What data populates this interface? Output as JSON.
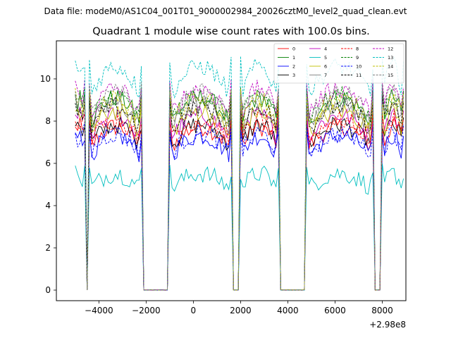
{
  "figure": {
    "suptitle": "Data file: modeM0/AS1C04_001T01_9000002984_20026cztM0_level2_quad_clean.evt",
    "offset_text": "+2.98e8"
  },
  "chart_data": {
    "type": "line",
    "title": "Quadrant 1 module wise count rates with 100.0s bins.",
    "xlabel": "",
    "ylabel": "",
    "x_offset": 298000000,
    "xlim": [
      -5800,
      9000
    ],
    "ylim": [
      -0.5,
      11.8
    ],
    "xticks": [
      -4000,
      -2000,
      0,
      2000,
      4000,
      6000,
      8000
    ],
    "xtick_labels": [
      "−4000",
      "−2000",
      "0",
      "2000",
      "4000",
      "6000",
      "8000"
    ],
    "yticks": [
      0,
      2,
      4,
      6,
      8,
      10
    ],
    "ytick_labels": [
      "0",
      "2",
      "4",
      "6",
      "8",
      "10"
    ],
    "bin_seconds": 100,
    "segments": [
      [
        -5000,
        -4600
      ],
      [
        -4400,
        -2200
      ],
      [
        -1000,
        1600
      ],
      [
        2000,
        3600
      ],
      [
        4800,
        7600
      ],
      [
        8000,
        8900
      ]
    ],
    "gaps": [
      [
        -4600,
        -4400
      ],
      [
        -2200,
        -1000
      ],
      [
        1600,
        2000
      ],
      [
        3600,
        4800
      ],
      [
        7600,
        8000
      ]
    ],
    "legend": {
      "location": "upper right",
      "ncol": 4
    },
    "series": [
      {
        "name": "0",
        "color": "#ff0000",
        "dash": "solid",
        "level": 7.3
      },
      {
        "name": "1",
        "color": "#008000",
        "dash": "solid",
        "level": 8.6
      },
      {
        "name": "2",
        "color": "#0000ff",
        "dash": "solid",
        "level": 6.9
      },
      {
        "name": "3",
        "color": "#000000",
        "dash": "solid",
        "level": 7.4
      },
      {
        "name": "4",
        "color": "#bf00bf",
        "dash": "solid",
        "level": 7.8
      },
      {
        "name": "5",
        "color": "#00bfbf",
        "dash": "solid",
        "level": 5.2
      },
      {
        "name": "6",
        "color": "#bfbf00",
        "dash": "solid",
        "level": 8.0
      },
      {
        "name": "7",
        "color": "#808080",
        "dash": "solid",
        "level": 8.3
      },
      {
        "name": "8",
        "color": "#ff0000",
        "dash": "dashed",
        "level": 7.6
      },
      {
        "name": "9",
        "color": "#008000",
        "dash": "dashed",
        "level": 8.7
      },
      {
        "name": "10",
        "color": "#0000ff",
        "dash": "dashed",
        "level": 7.0
      },
      {
        "name": "11",
        "color": "#000000",
        "dash": "dashed",
        "level": 8.2
      },
      {
        "name": "12",
        "color": "#bf00bf",
        "dash": "dashed",
        "level": 9.0
      },
      {
        "name": "13",
        "color": "#00bfbf",
        "dash": "dashed",
        "level": 10.0
      },
      {
        "name": "14",
        "color": "#bfbf00",
        "dash": "dashed",
        "level": 8.5
      },
      {
        "name": "15",
        "color": "#808080",
        "dash": "dashed",
        "level": 8.8
      }
    ]
  }
}
